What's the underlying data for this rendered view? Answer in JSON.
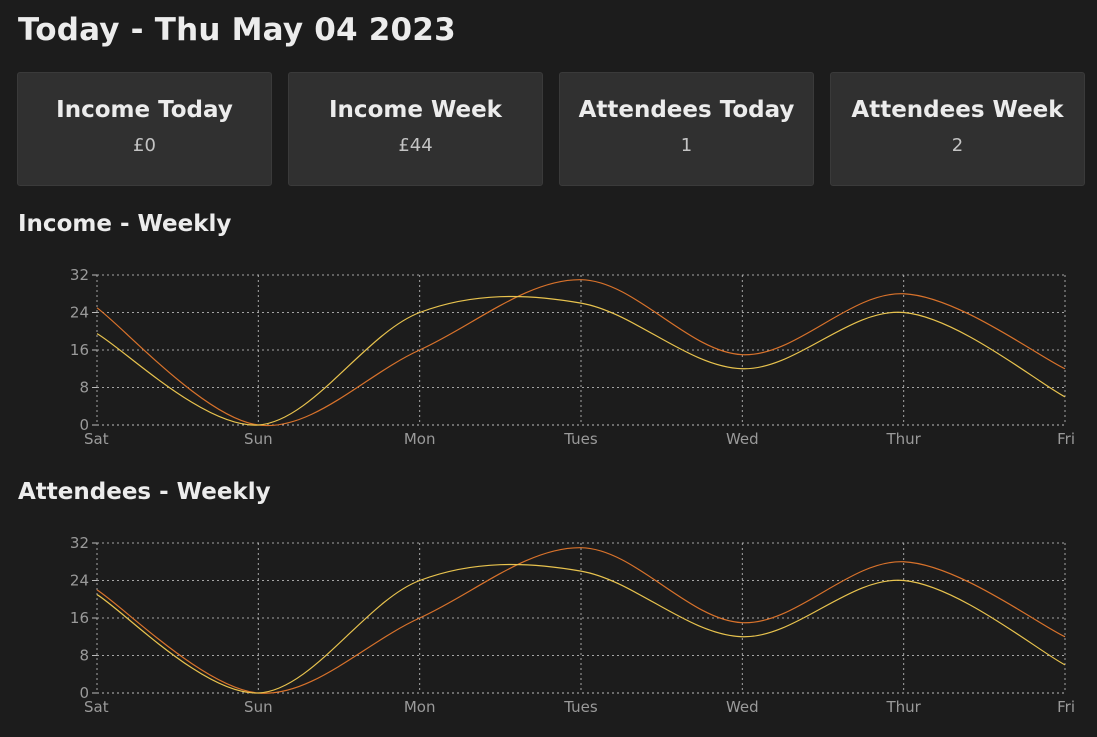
{
  "header": {
    "title": "Today - Thu May 04 2023"
  },
  "stats": [
    {
      "label": "Income Today",
      "value": "£0"
    },
    {
      "label": "Income Week",
      "value": "£44"
    },
    {
      "label": "Attendees Today",
      "value": "1"
    },
    {
      "label": "Attendees Week",
      "value": "2"
    }
  ],
  "colors": {
    "background": "#1c1c1c",
    "card": "#303030",
    "series_orange": "#d8722b",
    "series_yellow": "#e8c34e",
    "grid": "#bdbdbd"
  },
  "chart_data": [
    {
      "type": "line",
      "title": "Income - Weekly",
      "categories": [
        "Sat",
        "Sun",
        "Mon",
        "Tues",
        "Wed",
        "Thur",
        "Fri"
      ],
      "series": [
        {
          "color": "#d8722b",
          "values": [
            25,
            0,
            16,
            31,
            15,
            28,
            12
          ]
        },
        {
          "color": "#e8c34e",
          "values": [
            19.5,
            0,
            24,
            26,
            12,
            24,
            6
          ]
        }
      ],
      "ylim": [
        0,
        32
      ],
      "yticks": [
        0,
        8,
        16,
        24,
        32
      ],
      "grid": true,
      "grid_style": "dashed"
    },
    {
      "type": "line",
      "title": "Attendees - Weekly",
      "categories": [
        "Sat",
        "Sun",
        "Mon",
        "Tues",
        "Wed",
        "Thur",
        "Fri"
      ],
      "series": [
        {
          "color": "#d8722b",
          "values": [
            22,
            0,
            16,
            31,
            15,
            28,
            12
          ]
        },
        {
          "color": "#e8c34e",
          "values": [
            21,
            0,
            24,
            26,
            12,
            24,
            6
          ]
        }
      ],
      "ylim": [
        0,
        32
      ],
      "yticks": [
        0,
        8,
        16,
        24,
        32
      ],
      "grid": true,
      "grid_style": "dashed"
    }
  ]
}
